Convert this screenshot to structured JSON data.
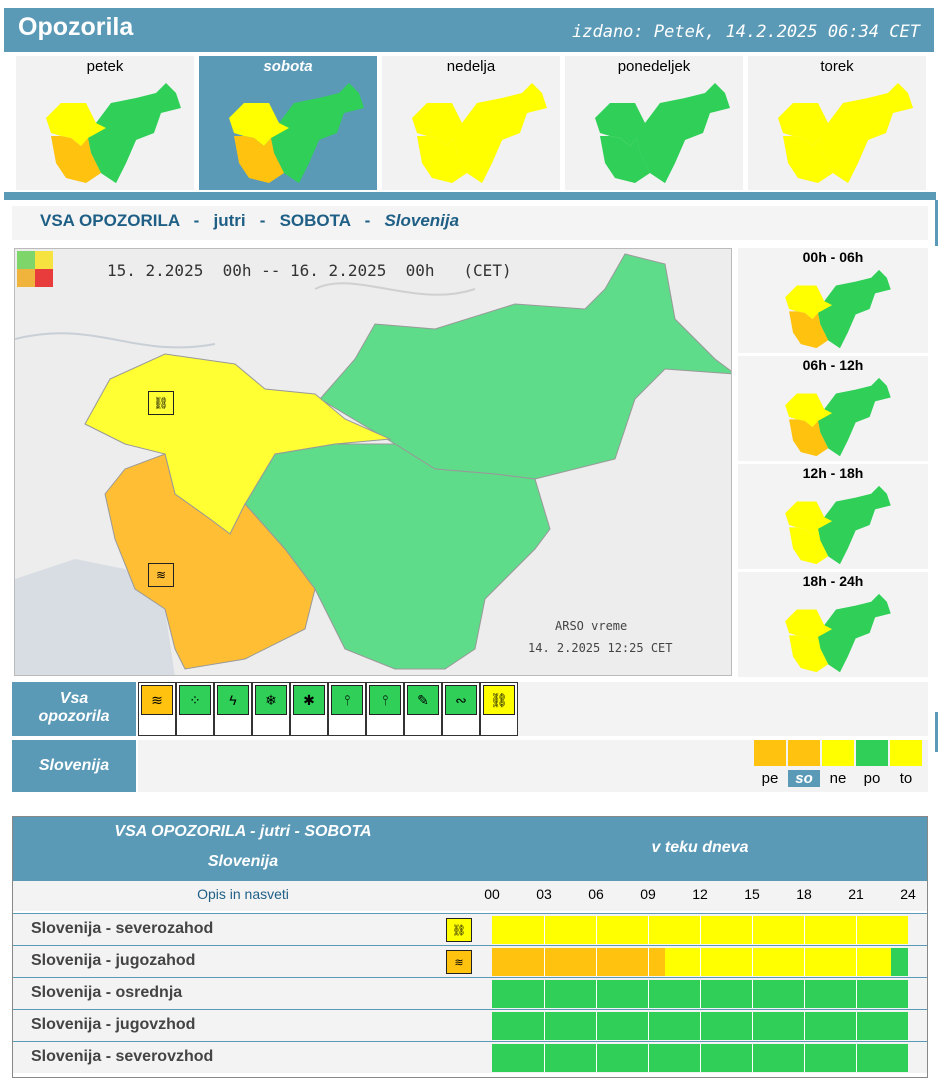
{
  "header": {
    "title": "Opozorila",
    "issued": "izdano: Petek, 14.2.2025 06:34 CET"
  },
  "days": [
    {
      "label": "petek",
      "selected": false,
      "scheme": "nw_split"
    },
    {
      "label": "sobota",
      "selected": true,
      "scheme": "nw_split"
    },
    {
      "label": "nedelja",
      "selected": false,
      "scheme": "all_yellow"
    },
    {
      "label": "ponedeljek",
      "selected": false,
      "scheme": "all_green"
    },
    {
      "label": "torek",
      "selected": false,
      "scheme": "all_yellow"
    }
  ],
  "section_title": {
    "a": "VSA OPOZORILA",
    "b": "jutri",
    "c": "SOBOTA",
    "d": "Slovenija"
  },
  "main_map": {
    "period": "15. 2.2025  00h -- 16. 2.2025  00h   (CET)",
    "credit_line1": "ARSO vreme",
    "credit_line2": "14. 2.2025  12:25 CET"
  },
  "time_slots": [
    {
      "label": "00h - 06h",
      "scheme": "nw_split"
    },
    {
      "label": "06h - 12h",
      "scheme": "nw_split"
    },
    {
      "label": "12h - 18h",
      "scheme": "west_yellow"
    },
    {
      "label": "18h - 24h",
      "scheme": "west_yellow"
    }
  ],
  "warnings_label": {
    "line1": "Vsa",
    "line2": "opozorila"
  },
  "warning_icons": [
    {
      "name": "wind-icon",
      "glyph": "≋",
      "level": "orange"
    },
    {
      "name": "rain-icon",
      "glyph": "⁘",
      "level": "green"
    },
    {
      "name": "thunderstorm-icon",
      "glyph": "ϟ",
      "level": "green"
    },
    {
      "name": "snow-icon",
      "glyph": "❄",
      "level": "green"
    },
    {
      "name": "snow-ice-icon",
      "glyph": "✱",
      "level": "green"
    },
    {
      "name": "high-temperature-icon",
      "glyph": "⫯",
      "level": "green"
    },
    {
      "name": "low-temperature-icon",
      "glyph": "⫯",
      "level": "green"
    },
    {
      "name": "fire-icon",
      "glyph": "✎",
      "level": "green"
    },
    {
      "name": "coastal-event-icon",
      "glyph": "∾",
      "level": "green"
    },
    {
      "name": "wind-chain-icon",
      "glyph": "⛓",
      "level": "yellow"
    }
  ],
  "region_label": "Slovenija",
  "day_sequence": [
    {
      "label": "pe",
      "color": "#ffc20e",
      "selected": false
    },
    {
      "label": "so",
      "color": "#ffc20e",
      "selected": true
    },
    {
      "label": "ne",
      "color": "#ffff00",
      "selected": false
    },
    {
      "label": "po",
      "color": "#2fcf58",
      "selected": false
    },
    {
      "label": "to",
      "color": "#ffff00",
      "selected": false
    }
  ],
  "table": {
    "title1": "VSA OPOZORILA - jutri - SOBOTA",
    "title2": "Slovenija",
    "during_day": "v teku dneva",
    "desc_label": "Opis in nasveti",
    "hours": [
      "00",
      "03",
      "06",
      "09",
      "12",
      "15",
      "18",
      "21",
      "24"
    ],
    "rows": [
      {
        "name": "Slovenija - severozahod",
        "icon": "wind-chain-icon",
        "glyph": "⛓",
        "icon_color": "#ffff00",
        "segments": [
          {
            "from": 0,
            "to": 24,
            "color": "#ffff00"
          }
        ]
      },
      {
        "name": "Slovenija - jugozahod",
        "icon": "wind-icon",
        "glyph": "≋",
        "icon_color": "#ffc20e",
        "segments": [
          {
            "from": 0,
            "to": 10,
            "color": "#ffc20e"
          },
          {
            "from": 10,
            "to": 23,
            "color": "#ffff00"
          },
          {
            "from": 23,
            "to": 24,
            "color": "#2fcf58"
          }
        ]
      },
      {
        "name": "Slovenija - osrednja",
        "icon": "",
        "glyph": "",
        "icon_color": "",
        "segments": [
          {
            "from": 0,
            "to": 24,
            "color": "#2fcf58"
          }
        ]
      },
      {
        "name": "Slovenija - jugovzhod",
        "icon": "",
        "glyph": "",
        "icon_color": "",
        "segments": [
          {
            "from": 0,
            "to": 24,
            "color": "#2fcf58"
          }
        ]
      },
      {
        "name": "Slovenija - severovzhod",
        "icon": "",
        "glyph": "",
        "icon_color": "",
        "segments": [
          {
            "from": 0,
            "to": 24,
            "color": "#2fcf58"
          }
        ]
      }
    ]
  },
  "colors": {
    "green": "#2fcf58",
    "yellow": "#ffff00",
    "orange": "#ffc20e",
    "accent": "#5b9ab7"
  }
}
